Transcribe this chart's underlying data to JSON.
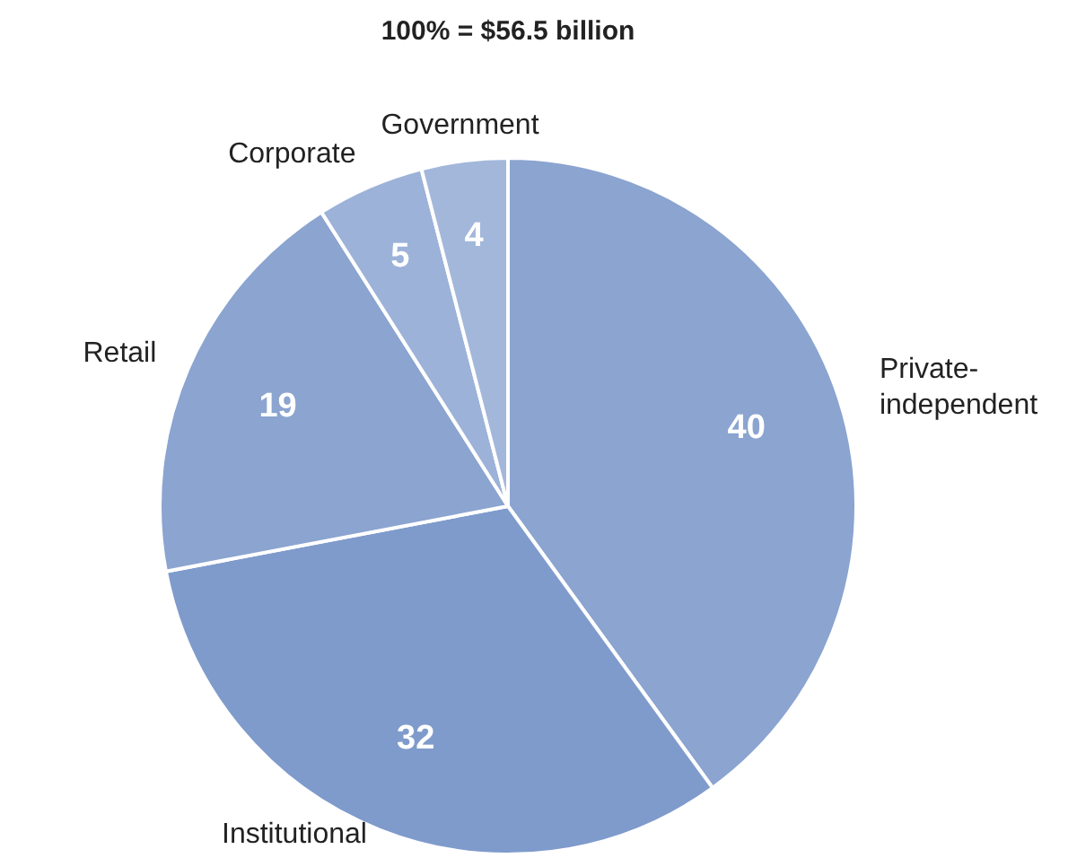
{
  "chart_data": {
    "type": "pie",
    "title": "100% = $56.5 billion",
    "categories": [
      "Private-independent",
      "Institutional",
      "Retail",
      "Corporate",
      "Government"
    ],
    "values": [
      40,
      32,
      19,
      5,
      4
    ],
    "colors": [
      "#8ba4d0",
      "#7f9bcc",
      "#8ba4d0",
      "#9cb2d8",
      "#a3b7db"
    ],
    "data_labels": true,
    "legend": false
  }
}
